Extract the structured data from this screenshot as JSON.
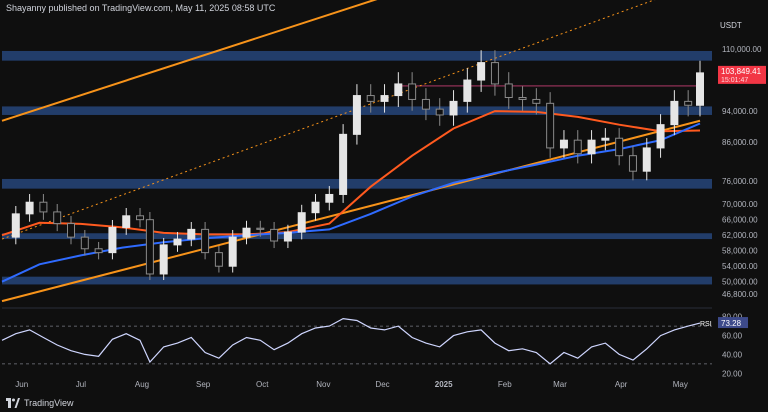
{
  "header": {
    "publisher_text": "Shayanny published on TradingView.com, May 11, 2025 08:58 UTC"
  },
  "footer": {
    "brand": "TradingView",
    "logo_icon": "tradingview-logo-icon"
  },
  "colors": {
    "background": "#0f0f0f",
    "price_up": "#e6e6e6",
    "price_down": "#8a8a8a",
    "ema_orange": "#ff5a1f",
    "sma_blue": "#2f6bff",
    "channel_orange": "#f7931a",
    "zone_blue": "#26457a",
    "rsi_line": "#cfd6ff",
    "last_price_tag": "#f23645",
    "resistance_line": "#7b2b4a"
  },
  "chart_data": [
    {
      "type": "line",
      "title": "",
      "price_scale_unit": "USDT",
      "ylim": [
        44000,
        118000
      ],
      "y_ticks": [
        110000,
        94000,
        86000,
        76000,
        70000,
        66000,
        62000,
        58000,
        54000,
        50000,
        46800
      ],
      "x_ticks": [
        "Jun",
        "Jul",
        "Aug",
        "Sep",
        "Oct",
        "Nov",
        "Dec",
        "2025",
        "Feb",
        "Mar",
        "Apr",
        "May"
      ],
      "last_price": {
        "value_label": "103,849.41",
        "countdown": "15:01:47",
        "value": 103849.41
      },
      "series": [
        {
          "role": "price",
          "x": [
            "2024-05-22",
            "2024-05-29",
            "2024-06-05",
            "2024-06-12",
            "2024-06-19",
            "2024-06-26",
            "2024-07-03",
            "2024-07-10",
            "2024-07-17",
            "2024-07-24",
            "2024-07-31",
            "2024-08-05",
            "2024-08-12",
            "2024-08-19",
            "2024-08-26",
            "2024-09-02",
            "2024-09-09",
            "2024-09-16",
            "2024-09-23",
            "2024-09-30",
            "2024-10-07",
            "2024-10-14",
            "2024-10-21",
            "2024-10-28",
            "2024-11-04",
            "2024-11-11",
            "2024-11-18",
            "2024-11-25",
            "2024-12-02",
            "2024-12-09",
            "2024-12-16",
            "2024-12-23",
            "2024-12-30",
            "2025-01-06",
            "2025-01-13",
            "2025-01-20",
            "2025-01-27",
            "2025-02-03",
            "2025-02-10",
            "2025-02-17",
            "2025-02-24",
            "2025-03-03",
            "2025-03-10",
            "2025-03-17",
            "2025-03-24",
            "2025-03-31",
            "2025-04-07",
            "2025-04-14",
            "2025-04-21",
            "2025-04-28",
            "2025-05-05",
            "2025-05-11"
          ],
          "y": [
            61500,
            67500,
            70500,
            68000,
            65000,
            61500,
            58500,
            57500,
            64000,
            67000,
            66000,
            52000,
            59500,
            61000,
            63500,
            57500,
            54000,
            61500,
            63800,
            63500,
            60500,
            62800,
            67800,
            70500,
            72500,
            88000,
            98000,
            96500,
            98000,
            101000,
            97000,
            94500,
            93000,
            96500,
            102000,
            106500,
            101000,
            97500,
            97000,
            96000,
            84500,
            86500,
            83000,
            86500,
            87000,
            82500,
            78500,
            84500,
            90500,
            96500,
            95500,
            103849
          ]
        },
        {
          "role": "ema",
          "x": [
            "2024-05-22",
            "2024-06-10",
            "2024-07-01",
            "2024-07-22",
            "2024-08-12",
            "2024-09-02",
            "2024-09-23",
            "2024-10-14",
            "2024-11-04",
            "2024-11-25",
            "2024-12-16",
            "2025-01-06",
            "2025-01-27",
            "2025-02-17",
            "2025-03-10",
            "2025-03-31",
            "2025-04-21",
            "2025-05-11"
          ],
          "y": [
            62000,
            65200,
            64900,
            64000,
            62600,
            62200,
            62200,
            62800,
            65000,
            74500,
            82500,
            89500,
            94000,
            93800,
            92500,
            90500,
            88800,
            89000
          ]
        },
        {
          "role": "sma",
          "x": [
            "2024-05-22",
            "2024-06-10",
            "2024-07-01",
            "2024-07-22",
            "2024-08-12",
            "2024-09-02",
            "2024-09-23",
            "2024-10-14",
            "2024-11-04",
            "2024-11-25",
            "2024-12-16",
            "2025-01-06",
            "2025-01-27",
            "2025-02-17",
            "2025-03-10",
            "2025-03-31",
            "2025-04-21",
            "2025-05-11"
          ],
          "y": [
            50000,
            54500,
            56800,
            58800,
            60200,
            61200,
            62000,
            62600,
            63500,
            67500,
            72000,
            75500,
            78000,
            80200,
            82500,
            84200,
            86500,
            90800
          ]
        }
      ],
      "zones": [
        {
          "from": 107000,
          "to": 109500
        },
        {
          "from": 93000,
          "to": 95200
        },
        {
          "from": 74000,
          "to": 76500
        },
        {
          "from": 61000,
          "to": 62500
        },
        {
          "from": 49300,
          "to": 51300
        }
      ],
      "resistance_level": 100500,
      "trend_lines": [
        {
          "role": "channel-upper",
          "x": [
            "2024-05-22",
            "2024-12-05"
          ],
          "y": [
            91500,
            124000
          ],
          "style": "solid"
        },
        {
          "role": "channel-lower",
          "x": [
            "2024-05-22",
            "2025-05-11"
          ],
          "y": [
            45000,
            91500
          ],
          "style": "solid"
        },
        {
          "role": "channel-mid",
          "x": [
            "2024-05-22",
            "2025-05-11"
          ],
          "y": [
            61000,
            127000
          ],
          "style": "dotted"
        }
      ],
      "grid": false
    },
    {
      "type": "line",
      "title": "",
      "indicator": "RSI",
      "ylim": [
        15,
        85
      ],
      "y_ticks": [
        80.0,
        60.0,
        40.0,
        20.0
      ],
      "dashed_levels": [
        70,
        30
      ],
      "last_value_label": "73.28",
      "series": [
        {
          "role": "rsi",
          "x": [
            "2024-05-22",
            "2024-05-29",
            "2024-06-05",
            "2024-06-12",
            "2024-06-19",
            "2024-06-26",
            "2024-07-03",
            "2024-07-10",
            "2024-07-17",
            "2024-07-24",
            "2024-07-31",
            "2024-08-05",
            "2024-08-12",
            "2024-08-19",
            "2024-08-26",
            "2024-09-02",
            "2024-09-09",
            "2024-09-16",
            "2024-09-23",
            "2024-09-30",
            "2024-10-07",
            "2024-10-14",
            "2024-10-21",
            "2024-10-28",
            "2024-11-04",
            "2024-11-11",
            "2024-11-18",
            "2024-11-25",
            "2024-12-02",
            "2024-12-09",
            "2024-12-16",
            "2024-12-23",
            "2024-12-30",
            "2025-01-06",
            "2025-01-13",
            "2025-01-20",
            "2025-01-27",
            "2025-02-03",
            "2025-02-10",
            "2025-02-17",
            "2025-02-24",
            "2025-03-03",
            "2025-03-10",
            "2025-03-17",
            "2025-03-24",
            "2025-03-31",
            "2025-04-07",
            "2025-04-14",
            "2025-04-21",
            "2025-04-28",
            "2025-05-05",
            "2025-05-11"
          ],
          "y": [
            55,
            62,
            66,
            58,
            50,
            44,
            40,
            38,
            56,
            62,
            55,
            32,
            48,
            52,
            58,
            42,
            36,
            50,
            58,
            55,
            45,
            52,
            62,
            68,
            70,
            78,
            76,
            68,
            66,
            70,
            58,
            52,
            48,
            60,
            64,
            66,
            52,
            44,
            46,
            42,
            30,
            42,
            36,
            48,
            52,
            40,
            34,
            46,
            60,
            66,
            70,
            73.28
          ]
        }
      ],
      "grid": false
    }
  ]
}
